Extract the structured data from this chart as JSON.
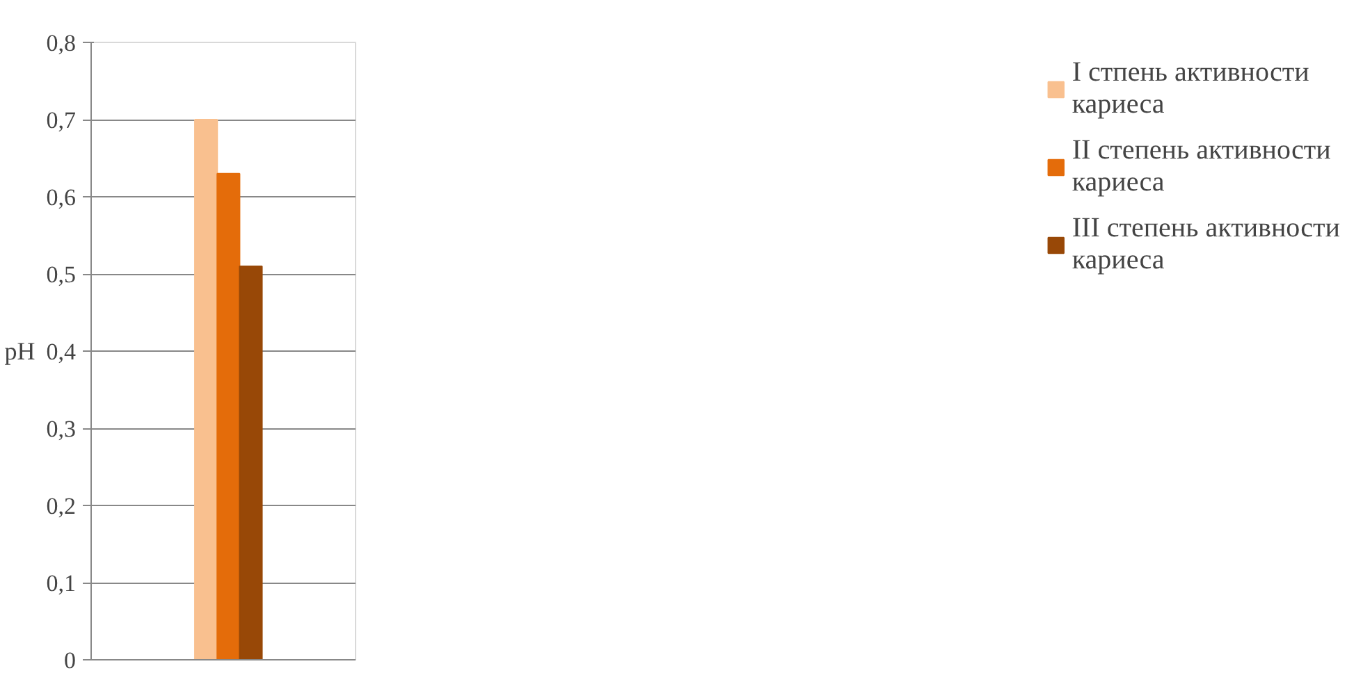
{
  "chart_data": {
    "type": "bar",
    "ylabel": "pH",
    "categories": [
      null
    ],
    "series": [
      {
        "name": "I стпень активности кариеса",
        "color": "#f9c08f",
        "values": [
          0.7
        ]
      },
      {
        "name": "II степень активности кариеса",
        "color": "#e46c0a",
        "values": [
          0.63
        ]
      },
      {
        "name": "III степень активности кариеса",
        "color": "#984807",
        "values": [
          0.51
        ]
      }
    ],
    "ylim": [
      0,
      0.8
    ],
    "yticks": [
      {
        "value": 0,
        "label": "0"
      },
      {
        "value": 0.1,
        "label": "0,1"
      },
      {
        "value": 0.2,
        "label": "0,2"
      },
      {
        "value": 0.3,
        "label": "0,3"
      },
      {
        "value": 0.4,
        "label": "0,4"
      },
      {
        "value": 0.5,
        "label": "0,5"
      },
      {
        "value": 0.6,
        "label": "0,6"
      },
      {
        "value": 0.7,
        "label": "0,7"
      },
      {
        "value": 0.8,
        "label": "0,8"
      }
    ],
    "grid": "y",
    "legend": "right"
  }
}
